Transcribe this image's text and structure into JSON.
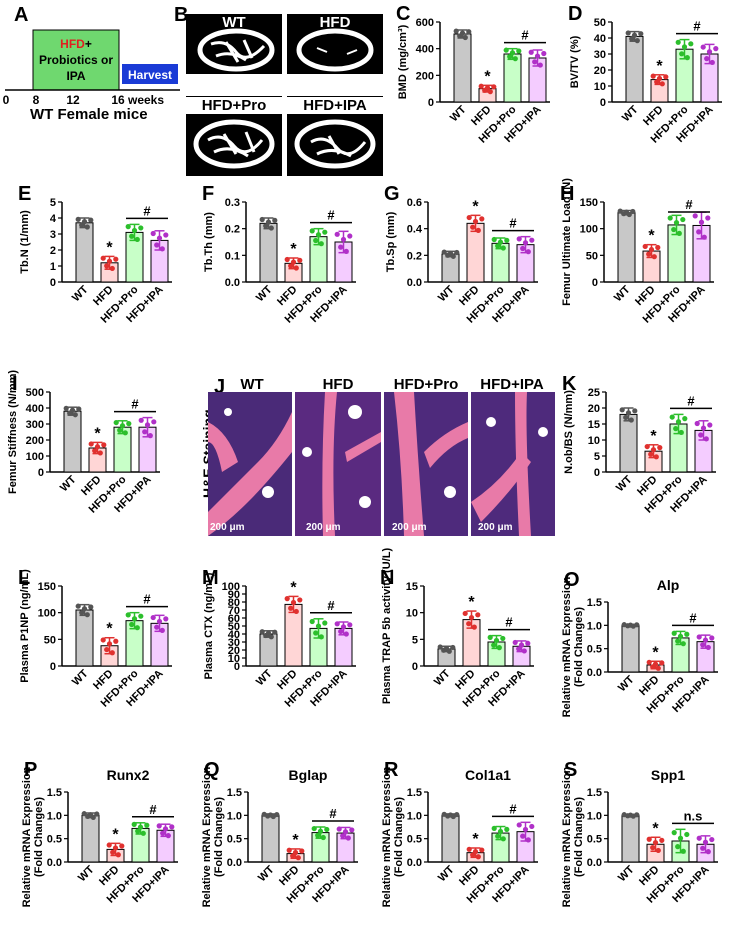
{
  "colors": {
    "wt": "#c8c8c8",
    "hfd": "#ffd6d6",
    "pro": "#c8ffc8",
    "ipa": "#f4ccff",
    "wt_dot": "#555555",
    "hfd_dot": "#e0312f",
    "pro_dot": "#2cbf2c",
    "ipa_dot": "#b030c8",
    "timeline_green": "#6fd86f",
    "harvest_blue": "#1a3bd6",
    "hfd_red": "#e02020"
  },
  "panelA": {
    "letter": "A",
    "box_hfd": "HFD",
    "box_plus": "+",
    "box_line2": "Probiotics or",
    "box_line3": "IPA",
    "harvest": "Harvest",
    "ticks": [
      "0",
      "8",
      "12",
      "16"
    ],
    "weeks": "weeks",
    "title": "WT Female mice"
  },
  "panelB": {
    "letter": "B",
    "labels": [
      "WT",
      "HFD",
      "HFD+Pro",
      "HFD+IPA"
    ]
  },
  "panelJ": {
    "letter": "J",
    "side_label": "H&E Staining",
    "labels": [
      "WT",
      "HFD",
      "HFD+Pro",
      "HFD+IPA"
    ],
    "scale": "200 μm"
  },
  "chart_data": [
    {
      "id": "C",
      "type": "bar",
      "letter": "C",
      "ylabel": "BMD (mg/cm³)",
      "categories": [
        "WT",
        "HFD",
        "HFD+Pro",
        "HFD+IPA"
      ],
      "values": [
        510,
        100,
        360,
        330
      ],
      "errors": [
        30,
        25,
        40,
        60
      ],
      "ylim": [
        0,
        600
      ],
      "yticks": [
        "0",
        "200",
        "400",
        "600"
      ],
      "star": "*",
      "sig": "#"
    },
    {
      "id": "D",
      "type": "bar",
      "letter": "D",
      "ylabel": "BV/TV (%)",
      "categories": [
        "WT",
        "HFD",
        "HFD+Pro",
        "HFD+IPA"
      ],
      "values": [
        41,
        14,
        33,
        30
      ],
      "errors": [
        3,
        3,
        6,
        6
      ],
      "ylim": [
        0,
        50
      ],
      "yticks": [
        "0",
        "10",
        "20",
        "30",
        "40",
        "50"
      ],
      "star": "*",
      "sig": "#"
    },
    {
      "id": "E",
      "type": "bar",
      "letter": "E",
      "ylabel": "Tb.N (1/mm)",
      "categories": [
        "WT",
        "HFD",
        "HFD+Pro",
        "HFD+IPA"
      ],
      "values": [
        3.7,
        1.2,
        3.1,
        2.6
      ],
      "errors": [
        0.3,
        0.4,
        0.5,
        0.6
      ],
      "ylim": [
        0,
        5
      ],
      "yticks": [
        "0",
        "1",
        "2",
        "3",
        "4",
        "5"
      ],
      "star": "*",
      "sig": "#"
    },
    {
      "id": "F",
      "type": "bar",
      "letter": "F",
      "ylabel": "Tb.Th (mm)",
      "categories": [
        "WT",
        "HFD",
        "HFD+Pro",
        "HFD+IPA"
      ],
      "values": [
        0.22,
        0.07,
        0.17,
        0.15
      ],
      "errors": [
        0.02,
        0.02,
        0.03,
        0.04
      ],
      "ylim": [
        0,
        0.3
      ],
      "yticks": [
        "0.0",
        "0.1",
        "0.2",
        "0.3"
      ],
      "star": "*",
      "sig": "#"
    },
    {
      "id": "G",
      "type": "bar",
      "letter": "G",
      "ylabel": "Tb.Sp (mm)",
      "categories": [
        "WT",
        "HFD",
        "HFD+Pro",
        "HFD+IPA"
      ],
      "values": [
        0.21,
        0.44,
        0.29,
        0.28
      ],
      "errors": [
        0.02,
        0.06,
        0.04,
        0.06
      ],
      "ylim": [
        0,
        0.6
      ],
      "yticks": [
        "0.0",
        "0.2",
        "0.4",
        "0.6"
      ],
      "star": "*",
      "sig": "#"
    },
    {
      "id": "H",
      "type": "bar",
      "letter": "H",
      "ylabel": "Femur Ultimate Load (N)",
      "categories": [
        "WT",
        "HFD",
        "HFD+Pro",
        "HFD+IPA"
      ],
      "values": [
        130,
        58,
        107,
        106
      ],
      "errors": [
        4,
        12,
        18,
        25
      ],
      "ylim": [
        0,
        150
      ],
      "yticks": [
        "0",
        "50",
        "100",
        "150"
      ],
      "star": "*",
      "sig": "#"
    },
    {
      "id": "I",
      "type": "bar",
      "letter": "I",
      "ylabel": "Femur Stiffness (N/mm)",
      "categories": [
        "WT",
        "HFD",
        "HFD+Pro",
        "HFD+IPA"
      ],
      "values": [
        380,
        150,
        280,
        280
      ],
      "errors": [
        25,
        35,
        40,
        60
      ],
      "ylim": [
        0,
        500
      ],
      "yticks": [
        "0",
        "100",
        "200",
        "300",
        "400",
        "500"
      ],
      "star": "*",
      "sig": "#"
    },
    {
      "id": "K",
      "type": "bar",
      "letter": "K",
      "ylabel": "N.ob/BS (N/mm)",
      "categories": [
        "WT",
        "HFD",
        "HFD+Pro",
        "HFD+IPA"
      ],
      "values": [
        18,
        6.5,
        15,
        13
      ],
      "errors": [
        2,
        2,
        3,
        3
      ],
      "ylim": [
        0,
        25
      ],
      "yticks": [
        "0",
        "5",
        "10",
        "15",
        "20",
        "25"
      ],
      "star": "*",
      "sig": "#"
    },
    {
      "id": "L",
      "type": "bar",
      "letter": "L",
      "ylabel": "Plasma P1NP (ng/mL)",
      "categories": [
        "WT",
        "HFD",
        "HFD+Pro",
        "HFD+IPA"
      ],
      "values": [
        105,
        38,
        85,
        80
      ],
      "errors": [
        10,
        15,
        15,
        15
      ],
      "ylim": [
        0,
        150
      ],
      "yticks": [
        "0",
        "50",
        "100",
        "150"
      ],
      "star": "*",
      "sig": "#"
    },
    {
      "id": "M",
      "type": "bar",
      "letter": "M",
      "ylabel": "Plasma CTX (ng/mL)",
      "categories": [
        "WT",
        "HFD",
        "HFD+Pro",
        "HFD+IPA"
      ],
      "values": [
        40,
        77,
        47,
        47
      ],
      "errors": [
        4,
        10,
        12,
        8
      ],
      "ylim": [
        0,
        100
      ],
      "yticks": [
        "0",
        "10",
        "20",
        "30",
        "40",
        "50",
        "60",
        "70",
        "80",
        "90",
        "100"
      ],
      "star": "*",
      "sig": "#"
    },
    {
      "id": "N",
      "type": "bar",
      "letter": "N",
      "ylabel": "Plasma TRAP 5b activity (U/L)",
      "categories": [
        "WT",
        "HFD",
        "HFD+Pro",
        "HFD+IPA"
      ],
      "values": [
        3.2,
        8.7,
        4.5,
        3.7
      ],
      "errors": [
        0.5,
        1.6,
        1.2,
        1.0
      ],
      "ylim": [
        0,
        15
      ],
      "yticks": [
        "0",
        "5",
        "10",
        "15"
      ],
      "star": "*",
      "sig": "#"
    },
    {
      "id": "O",
      "type": "bar",
      "letter": "O",
      "title": "Alp",
      "ylabel": "Relative mRNA Expression (Fold Changes)",
      "categories": [
        "WT",
        "HFD",
        "HFD+Pro",
        "HFD+IPA"
      ],
      "values": [
        1.0,
        0.15,
        0.73,
        0.65
      ],
      "errors": [
        0.02,
        0.08,
        0.14,
        0.14
      ],
      "ylim": [
        0,
        1.5
      ],
      "yticks": [
        "0.0",
        "0.5",
        "1.0",
        "1.5"
      ],
      "star": "*",
      "sig": "#"
    },
    {
      "id": "P",
      "type": "bar",
      "letter": "P",
      "title": "Runx2",
      "ylabel": "Relative mRNA Expression (Fold Changes)",
      "categories": [
        "WT",
        "HFD",
        "HFD+Pro",
        "HFD+IPA"
      ],
      "values": [
        1.0,
        0.27,
        0.72,
        0.68
      ],
      "errors": [
        0.05,
        0.13,
        0.12,
        0.13
      ],
      "ylim": [
        0,
        1.5
      ],
      "yticks": [
        "0.0",
        "0.5",
        "1.0",
        "1.5"
      ],
      "star": "*",
      "sig": "#"
    },
    {
      "id": "Q",
      "type": "bar",
      "letter": "Q",
      "title": "Bglap",
      "ylabel": "Relative mRNA Expression (Fold Changes)",
      "categories": [
        "WT",
        "HFD",
        "HFD+Pro",
        "HFD+IPA"
      ],
      "values": [
        1.0,
        0.18,
        0.63,
        0.62
      ],
      "errors": [
        0.03,
        0.1,
        0.12,
        0.12
      ],
      "ylim": [
        0,
        1.5
      ],
      "yticks": [
        "0.0",
        "0.5",
        "1.0",
        "1.5"
      ],
      "star": "*",
      "sig": "#"
    },
    {
      "id": "R",
      "type": "bar",
      "letter": "R",
      "title": "Col1a1",
      "ylabel": "Relative mRNA Expression (Fold Changes)",
      "categories": [
        "WT",
        "HFD",
        "HFD+Pro",
        "HFD+IPA"
      ],
      "values": [
        1.0,
        0.2,
        0.62,
        0.65
      ],
      "errors": [
        0.03,
        0.1,
        0.14,
        0.2
      ],
      "ylim": [
        0,
        1.5
      ],
      "yticks": [
        "0.0",
        "0.5",
        "1.0",
        "1.5"
      ],
      "star": "*",
      "sig": "#"
    },
    {
      "id": "S",
      "type": "bar",
      "letter": "S",
      "title": "Spp1",
      "ylabel": "Relative mRNA Expression (Fold Changes)",
      "categories": [
        "WT",
        "HFD",
        "HFD+Pro",
        "HFD+IPA"
      ],
      "values": [
        1.0,
        0.38,
        0.45,
        0.38
      ],
      "errors": [
        0.02,
        0.15,
        0.25,
        0.18
      ],
      "ylim": [
        0,
        1.5
      ],
      "yticks": [
        "0.0",
        "0.5",
        "1.0",
        "1.5"
      ],
      "star": "*",
      "sig": "n.s"
    }
  ]
}
